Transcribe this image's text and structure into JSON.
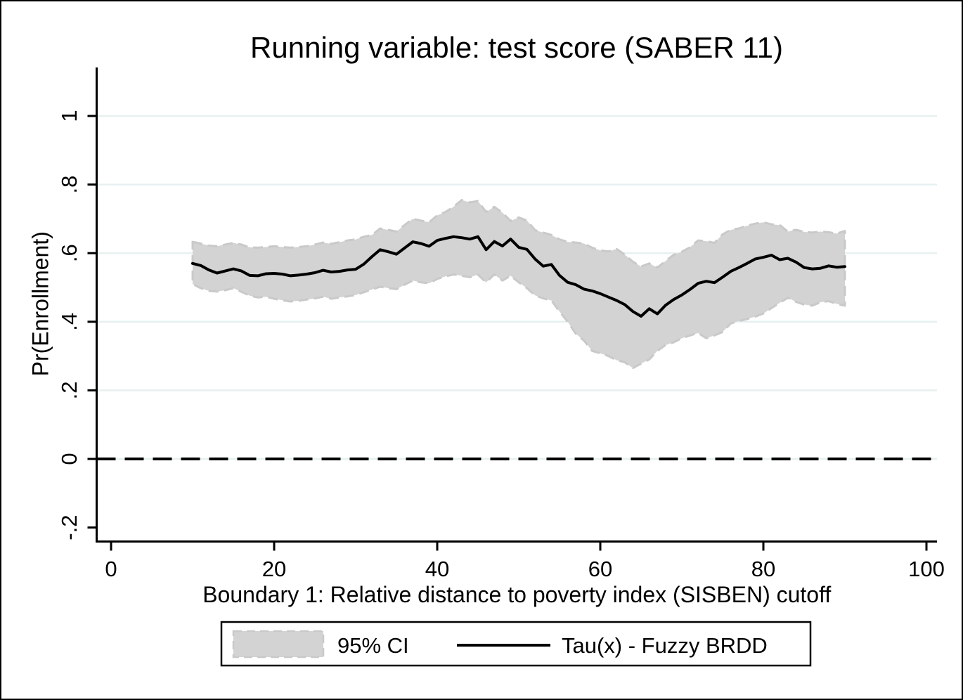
{
  "chart_data": {
    "type": "line",
    "title": "Running variable: test score (SABER 11)",
    "xlabel": "Boundary 1: Relative distance to poverty index (SISBEN) cutoff",
    "ylabel": "Pr(Enrollment)",
    "xlim": [
      0,
      102
    ],
    "ylim": [
      -0.28,
      1.15
    ],
    "x_ticks": [
      0,
      20,
      40,
      60,
      80,
      100
    ],
    "x_tick_labels": [
      "0",
      "20",
      "40",
      "60",
      "80",
      "100"
    ],
    "y_ticks": [
      1,
      0.8,
      0.6,
      0.4,
      0.2,
      0,
      -0.2
    ],
    "y_tick_labels": [
      "1",
      ".8",
      ".6",
      ".4",
      ".2",
      "0",
      "-.2"
    ],
    "gridline_values": [
      1,
      0.8,
      0.6,
      0.4,
      0.2,
      0
    ],
    "reference_line_y": 0,
    "grid_on": true,
    "legend": {
      "position": "bottom",
      "ci_label": "95% CI",
      "line_label": "Tau(x) - Fuzzy BRDD"
    },
    "colors": {
      "line": "#000000",
      "ci_fill": "#d3d3d3",
      "ci_edge": "#c9c9c9",
      "grid": "#e7f0f0",
      "axis": "#000000",
      "reference_line": "#000000",
      "background": "#ffffff"
    },
    "x": [
      10,
      11,
      12,
      13,
      14,
      15,
      16,
      17,
      18,
      19,
      20,
      21,
      22,
      23,
      24,
      25,
      26,
      27,
      28,
      29,
      30,
      31,
      32,
      33,
      34,
      35,
      36,
      37,
      38,
      39,
      40,
      41,
      42,
      43,
      44,
      45,
      46,
      47,
      48,
      49,
      50,
      51,
      52,
      53,
      54,
      55,
      56,
      57,
      58,
      59,
      60,
      61,
      62,
      63,
      64,
      65,
      66,
      67,
      68,
      69,
      70,
      71,
      72,
      73,
      74,
      75,
      76,
      77,
      78,
      79,
      80,
      81,
      82,
      83,
      84,
      85,
      86,
      87,
      88,
      89,
      90
    ],
    "series": [
      {
        "name": "Tau(x) - Fuzzy BRDD",
        "values": [
          0.57,
          0.564,
          0.551,
          0.542,
          0.548,
          0.554,
          0.548,
          0.535,
          0.534,
          0.54,
          0.541,
          0.539,
          0.534,
          0.536,
          0.539,
          0.543,
          0.55,
          0.545,
          0.547,
          0.551,
          0.553,
          0.568,
          0.59,
          0.61,
          0.604,
          0.597,
          0.615,
          0.633,
          0.628,
          0.62,
          0.637,
          0.643,
          0.648,
          0.645,
          0.641,
          0.648,
          0.61,
          0.634,
          0.621,
          0.641,
          0.617,
          0.611,
          0.583,
          0.562,
          0.567,
          0.535,
          0.515,
          0.508,
          0.495,
          0.49,
          0.482,
          0.472,
          0.462,
          0.45,
          0.43,
          0.416,
          0.438,
          0.423,
          0.448,
          0.465,
          0.478,
          0.494,
          0.512,
          0.518,
          0.514,
          0.53,
          0.547,
          0.558,
          0.57,
          0.583,
          0.588,
          0.594,
          0.581,
          0.585,
          0.574,
          0.558,
          0.554,
          0.556,
          0.563,
          0.559,
          0.561
        ]
      },
      {
        "name": "95% CI upper",
        "values": [
          0.633,
          0.628,
          0.622,
          0.62,
          0.625,
          0.63,
          0.625,
          0.617,
          0.616,
          0.618,
          0.62,
          0.618,
          0.616,
          0.618,
          0.62,
          0.625,
          0.631,
          0.627,
          0.632,
          0.637,
          0.64,
          0.648,
          0.653,
          0.672,
          0.668,
          0.663,
          0.682,
          0.7,
          0.695,
          0.69,
          0.71,
          0.72,
          0.735,
          0.755,
          0.748,
          0.752,
          0.72,
          0.735,
          0.718,
          0.694,
          0.704,
          0.695,
          0.667,
          0.66,
          0.653,
          0.64,
          0.633,
          0.631,
          0.628,
          0.616,
          0.608,
          0.605,
          0.612,
          0.596,
          0.575,
          0.561,
          0.57,
          0.558,
          0.577,
          0.595,
          0.604,
          0.617,
          0.637,
          0.635,
          0.63,
          0.655,
          0.668,
          0.672,
          0.68,
          0.686,
          0.69,
          0.684,
          0.682,
          0.663,
          0.668,
          0.662,
          0.66,
          0.663,
          0.661,
          0.657,
          0.665
        ]
      },
      {
        "name": "95% CI lower",
        "values": [
          0.51,
          0.498,
          0.49,
          0.488,
          0.492,
          0.498,
          0.487,
          0.476,
          0.471,
          0.473,
          0.467,
          0.463,
          0.459,
          0.461,
          0.465,
          0.468,
          0.473,
          0.467,
          0.471,
          0.474,
          0.478,
          0.486,
          0.494,
          0.502,
          0.498,
          0.495,
          0.508,
          0.52,
          0.515,
          0.512,
          0.525,
          0.532,
          0.538,
          0.534,
          0.53,
          0.537,
          0.515,
          0.538,
          0.52,
          0.534,
          0.515,
          0.498,
          0.477,
          0.468,
          0.462,
          0.43,
          0.4,
          0.365,
          0.345,
          0.315,
          0.308,
          0.3,
          0.288,
          0.282,
          0.265,
          0.278,
          0.29,
          0.315,
          0.332,
          0.34,
          0.352,
          0.36,
          0.367,
          0.352,
          0.36,
          0.37,
          0.395,
          0.402,
          0.408,
          0.415,
          0.424,
          0.44,
          0.455,
          0.47,
          0.458,
          0.45,
          0.447,
          0.457,
          0.46,
          0.452,
          0.447
        ]
      }
    ]
  }
}
